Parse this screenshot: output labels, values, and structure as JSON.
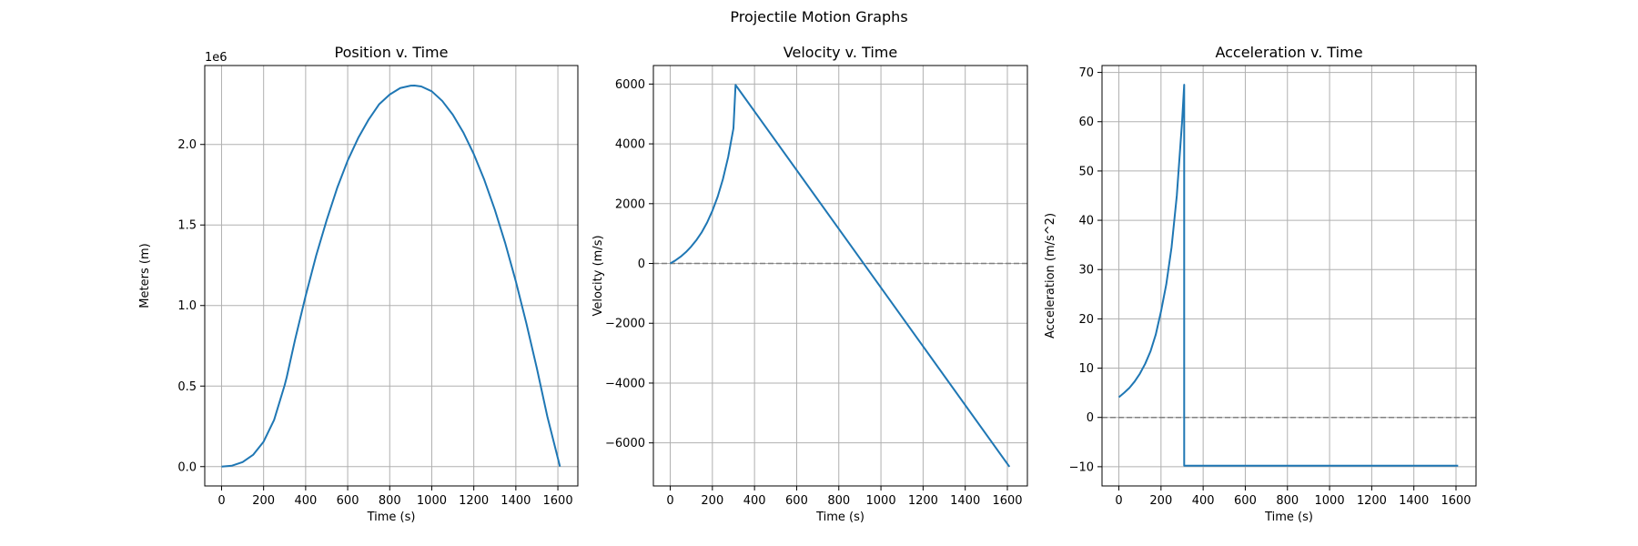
{
  "figure": {
    "title": "Projectile Motion Graphs"
  },
  "colors": {
    "line": "#1f77b4",
    "grid": "#b0b0b0",
    "zero_line": "#808080",
    "axes": "#000000"
  },
  "chart_data": [
    {
      "type": "line",
      "title": "Position v. Time",
      "xlabel": "Time (s)",
      "ylabel": "Meters (m)",
      "y_offset_label": "1e6",
      "xlim": [
        -80,
        1695
      ],
      "ylim": [
        -0.12,
        2.49
      ],
      "xticks": [
        0,
        200,
        400,
        600,
        800,
        1000,
        1200,
        1400,
        1600
      ],
      "yticks": [
        0.0,
        0.5,
        1.0,
        1.5,
        2.0
      ],
      "ytick_labels": [
        "0.0",
        "0.5",
        "1.0",
        "1.5",
        "2.0"
      ],
      "grid": true,
      "zero_line": false,
      "series": [
        {
          "x": [
            0,
            50,
            100,
            150,
            200,
            250,
            300,
            310,
            350,
            400,
            450,
            500,
            550,
            600,
            650,
            700,
            750,
            800,
            850,
            900,
            918,
            950,
            1000,
            1050,
            1100,
            1150,
            1200,
            1250,
            1300,
            1350,
            1400,
            1450,
            1500,
            1550,
            1610
          ],
          "y": [
            0.0,
            0.006,
            0.028,
            0.073,
            0.155,
            0.29,
            0.505,
            0.555,
            0.79,
            1.06,
            1.31,
            1.53,
            1.73,
            1.9,
            2.04,
            2.155,
            2.25,
            2.31,
            2.35,
            2.365,
            2.366,
            2.36,
            2.33,
            2.27,
            2.185,
            2.075,
            1.94,
            1.78,
            1.595,
            1.385,
            1.15,
            0.89,
            0.61,
            0.31,
            0.0
          ]
        }
      ]
    },
    {
      "type": "line",
      "title": "Velocity v. Time",
      "xlabel": "Time (s)",
      "ylabel": "Velocity (m/s)",
      "xlim": [
        -80,
        1695
      ],
      "ylim": [
        -7440,
        6620
      ],
      "xticks": [
        0,
        200,
        400,
        600,
        800,
        1000,
        1200,
        1400,
        1600
      ],
      "yticks": [
        -6000,
        -4000,
        -2000,
        0,
        2000,
        4000,
        6000
      ],
      "ytick_labels": [
        "−6000",
        "−4000",
        "−2000",
        "0",
        "2000",
        "4000",
        "6000"
      ],
      "grid": true,
      "zero_line": true,
      "series": [
        {
          "x": [
            0,
            25,
            50,
            75,
            100,
            125,
            150,
            175,
            200,
            225,
            250,
            275,
            300,
            310,
            1610
          ],
          "y": [
            0,
            105,
            230,
            385,
            570,
            790,
            1050,
            1370,
            1760,
            2230,
            2820,
            3560,
            4520,
            5970,
            -6800
          ]
        }
      ]
    },
    {
      "type": "line",
      "title": "Acceleration v. Time",
      "xlabel": "Time (s)",
      "ylabel": "Acceleration (m/s^2)",
      "xlim": [
        -80,
        1695
      ],
      "ylim": [
        -13.9,
        71.4
      ],
      "xticks": [
        0,
        200,
        400,
        600,
        800,
        1000,
        1200,
        1400,
        1600
      ],
      "yticks": [
        -10,
        0,
        10,
        20,
        30,
        40,
        50,
        60,
        70
      ],
      "ytick_labels": [
        "−10",
        "0",
        "10",
        "20",
        "30",
        "40",
        "50",
        "60",
        "70"
      ],
      "grid": true,
      "zero_line": true,
      "series": [
        {
          "x": [
            0,
            25,
            50,
            75,
            100,
            125,
            150,
            175,
            200,
            225,
            250,
            275,
            300,
            310,
            310,
            1610
          ],
          "y": [
            4.1,
            5.0,
            6.0,
            7.3,
            8.9,
            10.9,
            13.4,
            16.8,
            21.5,
            27.0,
            34.5,
            45.0,
            60.0,
            67.5,
            -9.8,
            -9.8
          ]
        }
      ]
    }
  ]
}
